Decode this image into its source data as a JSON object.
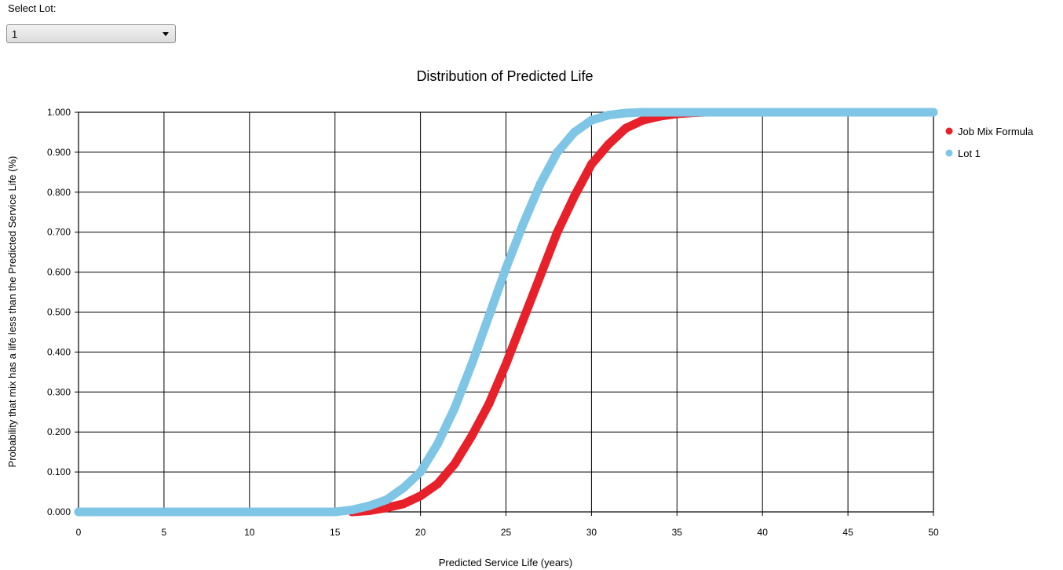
{
  "controls": {
    "lot_label": "Select Lot:",
    "lot_value": "1"
  },
  "chart_data": {
    "type": "scatter",
    "title": "Distribution of Predicted Life",
    "xlabel": "Predicted Service Life (years)",
    "ylabel": "Probability that mix has a life less than the Predicted Service Life (%)",
    "xlim": [
      0,
      50
    ],
    "ylim": [
      0,
      1
    ],
    "x_ticks": [
      "0",
      "5",
      "10",
      "15",
      "20",
      "25",
      "30",
      "35",
      "40",
      "45",
      "50"
    ],
    "y_ticks": [
      "0.000",
      "0.100",
      "0.200",
      "0.300",
      "0.400",
      "0.500",
      "0.600",
      "0.700",
      "0.800",
      "0.900",
      "1.000"
    ],
    "grid": true,
    "legend_position": "right",
    "series": [
      {
        "name": "Job Mix Formula",
        "color": "#e8202a",
        "x": [
          16,
          17,
          18,
          19,
          20,
          21,
          22,
          23,
          24,
          25,
          26,
          27,
          28,
          29,
          30,
          31,
          32,
          33,
          34,
          35,
          36,
          36.7
        ],
        "y": [
          0,
          0.003,
          0.01,
          0.02,
          0.04,
          0.07,
          0.12,
          0.19,
          0.27,
          0.37,
          0.48,
          0.59,
          0.7,
          0.79,
          0.87,
          0.92,
          0.96,
          0.98,
          0.99,
          0.996,
          0.999,
          1.0
        ]
      },
      {
        "name": "Lot 1",
        "color": "#7fc5e5",
        "x": [
          0,
          5,
          10,
          15,
          16,
          17,
          18,
          19,
          20,
          21,
          22,
          23,
          24,
          25,
          26,
          27,
          28,
          29,
          30,
          31,
          32,
          33,
          35,
          40,
          45,
          50
        ],
        "y": [
          0,
          0,
          0,
          0,
          0.005,
          0.015,
          0.03,
          0.06,
          0.1,
          0.17,
          0.26,
          0.37,
          0.49,
          0.61,
          0.72,
          0.82,
          0.9,
          0.95,
          0.98,
          0.993,
          0.998,
          1.0,
          1.0,
          1.0,
          1.0,
          1.0
        ]
      }
    ]
  }
}
